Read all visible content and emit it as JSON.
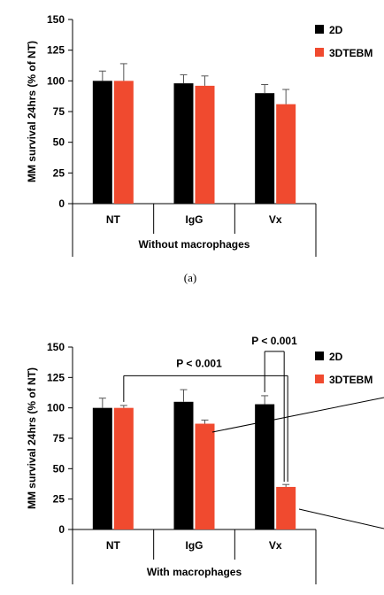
{
  "colors": {
    "2d": "#000000",
    "3dtebm": "#f04a2f"
  },
  "chart_data": [
    {
      "type": "bar",
      "panel_label": "(a)",
      "categories": [
        "NT",
        "IgG",
        "Vx"
      ],
      "group_label": "Without macrophages",
      "ylabel": "MM survival 24hrs (% of NT)",
      "ylim": [
        0,
        150
      ],
      "yticks": [
        "0",
        "25",
        "50",
        "75",
        "100",
        "125",
        "150"
      ],
      "legend_position": "top-right",
      "series": [
        {
          "name": "2D",
          "color": "#000000",
          "values": [
            100,
            98,
            90
          ],
          "errors": [
            8,
            7,
            7
          ]
        },
        {
          "name": "3DTEBM",
          "color": "#f04a2f",
          "values": [
            100,
            96,
            81
          ],
          "errors": [
            14,
            8,
            12
          ]
        }
      ]
    },
    {
      "type": "bar",
      "panel_label": "",
      "categories": [
        "NT",
        "IgG",
        "Vx"
      ],
      "group_label": "With macrophages",
      "ylabel": "MM survival 24hrs (% of NT)",
      "ylim": [
        0,
        150
      ],
      "yticks": [
        "0",
        "25",
        "50",
        "75",
        "100",
        "125",
        "150"
      ],
      "legend_position": "top-right",
      "series": [
        {
          "name": "2D",
          "color": "#000000",
          "values": [
            100,
            105,
            103
          ],
          "errors": [
            8,
            10,
            7
          ]
        },
        {
          "name": "3DTEBM",
          "color": "#f04a2f",
          "values": [
            100,
            87,
            35
          ],
          "errors": [
            2,
            3,
            2
          ]
        }
      ],
      "annotations": [
        {
          "text": "P < 0.001",
          "from": "NT-3DTEBM",
          "to": "Vx-3DTEBM"
        },
        {
          "text": "P < 0.001",
          "from": "Vx-2D",
          "to": "Vx-3DTEBM"
        }
      ]
    }
  ]
}
